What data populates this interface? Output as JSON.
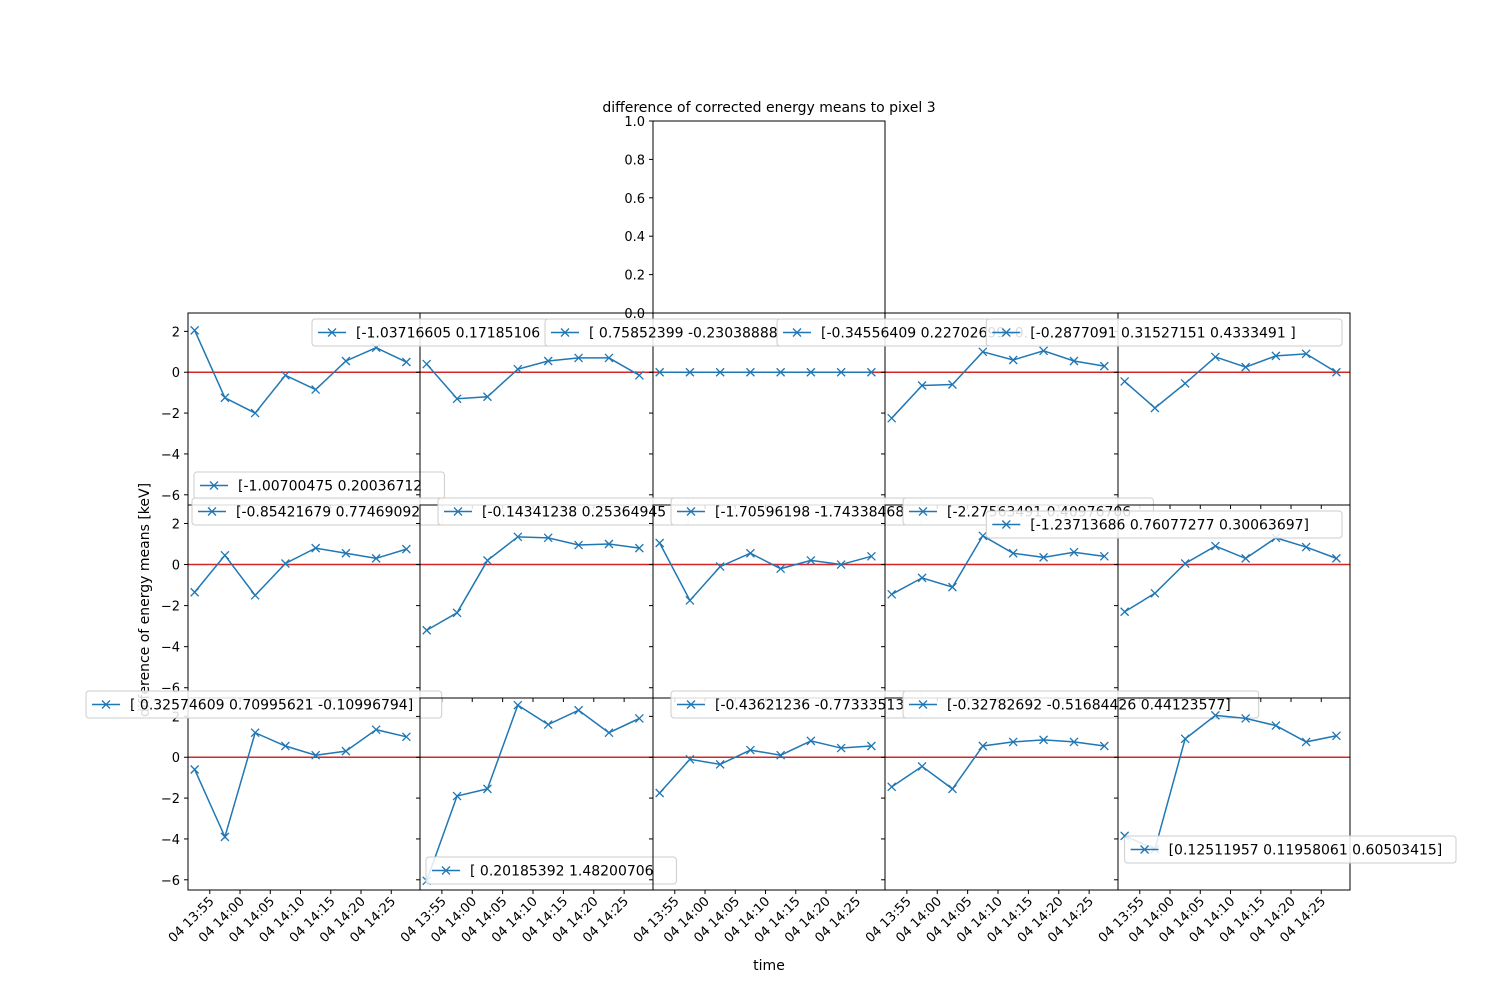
{
  "chart_data": {
    "type": "line",
    "title": "difference of corrected energy means to pixel 3",
    "xlabel": "time",
    "ylabel": "difference of energy means [keV]",
    "x": [
      "13:52",
      "13:56",
      "14:00",
      "14:04",
      "14:08",
      "14:12",
      "14:16",
      "14:20",
      "14:24",
      "14:28"
    ],
    "x_index": [
      1,
      2,
      3,
      4,
      5,
      6,
      7,
      8
    ],
    "xticks": [
      "04 13:55",
      "04 14:00",
      "04 14:05",
      "04 14:10",
      "04 14:15",
      "04 14:20",
      "04 14:25"
    ],
    "ylim": [
      -6.5,
      2.9
    ],
    "yticks": [
      2,
      0,
      -2,
      -4,
      -6
    ],
    "reference_line": {
      "y": 0,
      "color": "#d62728"
    },
    "series_color": "#1f77b4",
    "top_axis": {
      "yticks": [
        "1.0",
        "0.8",
        "0.6",
        "0.4",
        "0.2",
        "0.0"
      ],
      "ylim": [
        0,
        1
      ]
    },
    "panels": [
      {
        "legend": "[-1.00700475  0.20036712",
        "legend_pos": "lower-left",
        "values": [
          2.05,
          -1.25,
          -2.0,
          -0.15,
          -0.85,
          0.55,
          1.2,
          0.5
        ]
      },
      {
        "legend": "[-1.03716605  0.17185106",
        "legend_pos": "top-left",
        "values": [
          0.4,
          -1.3,
          -1.2,
          0.15,
          0.55,
          0.7,
          0.7,
          -0.15
        ]
      },
      {
        "legend": "[ 0.75852399 -0.23038888",
        "legend_pos": "top-left",
        "values": [
          0,
          0,
          0,
          0,
          0,
          0,
          0,
          0
        ]
      },
      {
        "legend": "[-0.34556409  0.22702699 -0.",
        "legend_pos": "top-left",
        "values": [
          -2.25,
          -0.65,
          -0.6,
          1.0,
          0.6,
          1.05,
          0.55,
          0.3
        ]
      },
      {
        "legend": "[-0.2877091   0.31527151  0.4333491 ]",
        "legend_pos": "top-right",
        "values": [
          -0.45,
          -1.75,
          -0.55,
          0.75,
          0.25,
          0.8,
          0.9,
          0.0
        ]
      },
      {
        "legend": "[-0.85421679  0.77469092",
        "legend_pos": "top-left",
        "values": [
          -1.35,
          0.45,
          -1.5,
          0.05,
          0.8,
          0.55,
          0.3,
          0.75
        ]
      },
      {
        "legend": "[-0.14341238  0.25364945",
        "legend_pos": "top-left",
        "values": [
          -3.2,
          -2.35,
          0.2,
          1.35,
          1.3,
          0.95,
          1.0,
          0.8
        ]
      },
      {
        "legend": "[-1.70596198 -1.74338468",
        "legend_pos": "top-left",
        "values": [
          1.05,
          -1.75,
          -0.1,
          0.55,
          -0.2,
          0.2,
          0.0,
          0.4
        ]
      },
      {
        "legend": "[-2.27563491  0.40976706",
        "legend_pos": "top-left",
        "values": [
          -1.45,
          -0.65,
          -1.1,
          1.4,
          0.55,
          0.35,
          0.6,
          0.4
        ]
      },
      {
        "legend": "[-1.23713686  0.76077277  0.30063697]",
        "legend_pos": "top-right",
        "values": [
          -2.3,
          -1.4,
          0.05,
          0.9,
          0.3,
          1.3,
          0.85,
          0.3
        ]
      },
      {
        "legend": "[ 0.32574609  0.70995621 -0.10996794]",
        "legend_pos": "top-left",
        "values": [
          -0.6,
          -3.9,
          1.2,
          0.55,
          0.1,
          0.3,
          1.35,
          1.0
        ]
      },
      {
        "legend": "[ 0.20185392  1.48200706",
        "legend_pos": "lower-left",
        "values": [
          -6.05,
          -1.9,
          -1.55,
          2.55,
          1.6,
          2.3,
          1.2,
          1.9
        ]
      },
      {
        "legend": "[-0.43621236 -0.77333513",
        "legend_pos": "top-left",
        "values": [
          -1.75,
          -0.1,
          -0.35,
          0.35,
          0.1,
          0.8,
          0.45,
          0.55
        ]
      },
      {
        "legend": "[-0.32782692 -0.51684426  0.44123577]",
        "legend_pos": "top-left",
        "values": [
          -1.45,
          -0.45,
          -1.55,
          0.55,
          0.75,
          0.85,
          0.75,
          0.55
        ]
      },
      {
        "legend": "[0.12511957 0.11958061 0.60503415]",
        "legend_pos": "lower-right",
        "values": [
          -3.85,
          -4.5,
          0.9,
          2.05,
          1.9,
          1.55,
          0.75,
          1.05
        ]
      }
    ]
  }
}
